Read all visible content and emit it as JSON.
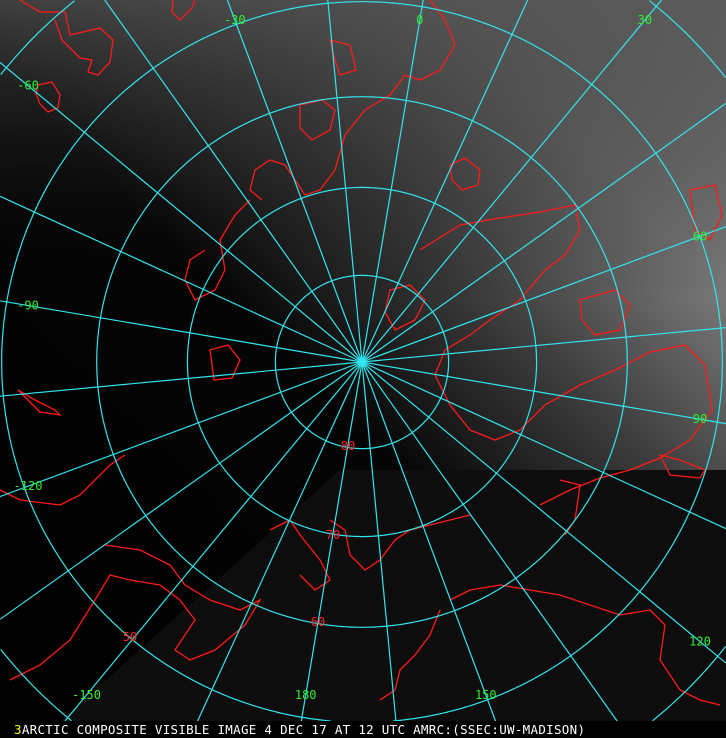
{
  "image": {
    "frame_number": "3",
    "caption": "ARCTIC COMPOSITE VISIBLE IMAGE 4 DEC 17 AT 12 UTC AMRC:(SSEC:UW-MADISON)"
  },
  "map": {
    "projection": "polar stereographic, north pole",
    "grid_color": "#33e5ee",
    "coastline_color": "#ff1a1a",
    "longitude_label_color": "#33ee33",
    "latitude_label_color": "#ff2222",
    "caption_color": "#ffffff",
    "frame_number_color": "#ffff00",
    "parallels": [
      80,
      70,
      60,
      50,
      40,
      30
    ],
    "latitude_labels": [
      "80",
      "70",
      "60",
      "50"
    ],
    "meridian_step_deg": 15,
    "longitude_labels": [
      "0",
      "30",
      "60",
      "90",
      "120",
      "150",
      "180",
      "-150",
      "-120",
      "-90",
      "-60",
      "-30"
    ]
  }
}
